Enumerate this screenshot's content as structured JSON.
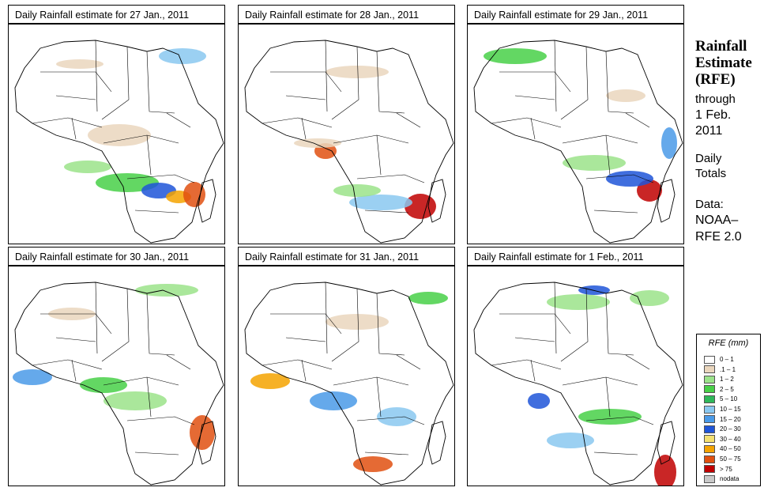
{
  "panels": [
    {
      "title": "Daily Rainfall estimate for  27 Jan., 2011"
    },
    {
      "title": "Daily Rainfall estimate for  28 Jan., 2011"
    },
    {
      "title": "Daily Rainfall estimate for  29 Jan., 2011"
    },
    {
      "title": "Daily Rainfall estimate for  30 Jan., 2011"
    },
    {
      "title": "Daily Rainfall estimate for  31 Jan., 2011"
    },
    {
      "title": "Daily Rainfall estimate for  1 Feb., 2011"
    }
  ],
  "sidebar": {
    "title_line1": "Rainfall",
    "title_line2": "Estimate",
    "title_line3": "(RFE)",
    "through": "through",
    "date_line1": "1 Feb.",
    "date_line2": "2011",
    "daily": "Daily",
    "totals": "Totals",
    "data_label": "Data:",
    "source_line1": "NOAA–",
    "source_line2": "RFE 2.0"
  },
  "legend": {
    "title": "RFE (mm)",
    "items": [
      {
        "label": "0 – 1",
        "color": "#ffffff"
      },
      {
        "label": ".1 – 1",
        "color": "#ead6bd"
      },
      {
        "label": "1 – 2",
        "color": "#9be38a"
      },
      {
        "label": "2 – 5",
        "color": "#48d048"
      },
      {
        "label": "5 – 10",
        "color": "#2fb85a"
      },
      {
        "label": "10 – 15",
        "color": "#8ac8f0"
      },
      {
        "label": "15 – 20",
        "color": "#4a9ae8"
      },
      {
        "label": "20 – 30",
        "color": "#1f55d8"
      },
      {
        "label": "30 – 40",
        "color": "#f4e070"
      },
      {
        "label": "40 – 50",
        "color": "#f4a300"
      },
      {
        "label": "50 – 75",
        "color": "#e05010"
      },
      {
        "label": "> 75",
        "color": "#c00000"
      },
      {
        "label": "nodata",
        "color": "#c8c8c8"
      }
    ]
  }
}
